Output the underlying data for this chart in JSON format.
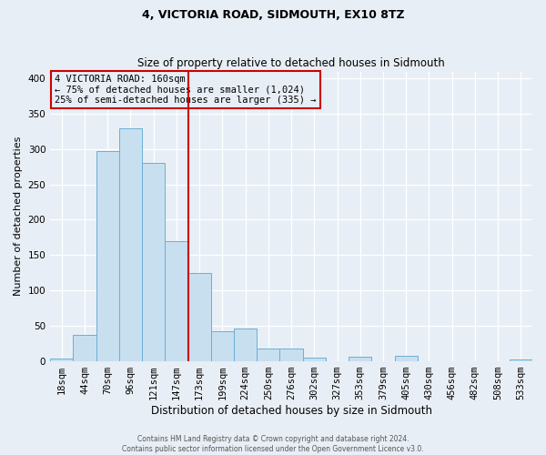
{
  "title": "4, VICTORIA ROAD, SIDMOUTH, EX10 8TZ",
  "subtitle": "Size of property relative to detached houses in Sidmouth",
  "xlabel": "Distribution of detached houses by size in Sidmouth",
  "ylabel": "Number of detached properties",
  "bar_labels": [
    "18sqm",
    "44sqm",
    "70sqm",
    "96sqm",
    "121sqm",
    "147sqm",
    "173sqm",
    "199sqm",
    "224sqm",
    "250sqm",
    "276sqm",
    "302sqm",
    "327sqm",
    "353sqm",
    "379sqm",
    "405sqm",
    "430sqm",
    "456sqm",
    "482sqm",
    "508sqm",
    "533sqm"
  ],
  "bar_values": [
    3,
    37,
    297,
    330,
    280,
    170,
    124,
    42,
    46,
    17,
    18,
    5,
    0,
    6,
    0,
    7,
    0,
    0,
    0,
    0,
    2
  ],
  "bar_color": "#c8dff0",
  "bar_edge_color": "#6aafd6",
  "property_line_x": 5.5,
  "property_line_color": "#cc0000",
  "annotation_box_text": "4 VICTORIA ROAD: 160sqm\n← 75% of detached houses are smaller (1,024)\n25% of semi-detached houses are larger (335) →",
  "annotation_box_edge_color": "#cc0000",
  "ylim": [
    0,
    410
  ],
  "yticks": [
    0,
    50,
    100,
    150,
    200,
    250,
    300,
    350,
    400
  ],
  "footer_line1": "Contains HM Land Registry data © Crown copyright and database right 2024.",
  "footer_line2": "Contains public sector information licensed under the Open Government Licence v3.0.",
  "bg_color": "#e8eef5",
  "plot_bg_color": "#e8eef5",
  "title_fontsize": 9,
  "subtitle_fontsize": 8.5,
  "xlabel_fontsize": 8.5,
  "ylabel_fontsize": 8,
  "tick_fontsize": 7.5,
  "annotation_fontsize": 7.5,
  "footer_fontsize": 5.5
}
